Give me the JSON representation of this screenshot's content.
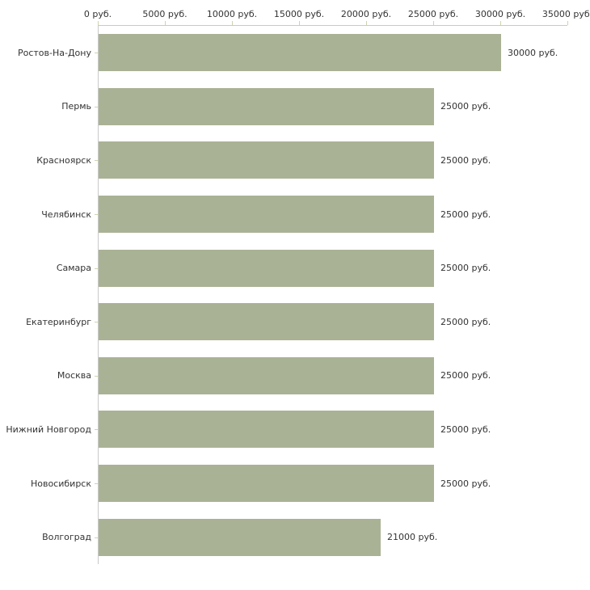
{
  "chart_data": {
    "type": "bar",
    "orientation": "horizontal",
    "title": "",
    "xlabel": "",
    "ylabel": "",
    "xlim": [
      0,
      35000
    ],
    "grid": false,
    "value_suffix": " руб.",
    "categories": [
      "Ростов-На-Дону",
      "Пермь",
      "Красноярск",
      "Челябинск",
      "Самара",
      "Екатеринбург",
      "Москва",
      "Нижний Новгород",
      "Новосибирск",
      "Волгоград"
    ],
    "values": [
      30000,
      25000,
      25000,
      25000,
      25000,
      25000,
      25000,
      25000,
      25000,
      21000
    ],
    "value_labels": [
      "30000 руб.",
      "25000 руб.",
      "25000 руб.",
      "25000 руб.",
      "25000 руб.",
      "25000 руб.",
      "25000 руб.",
      "25000 руб.",
      "25000 руб.",
      "21000 руб."
    ],
    "x_ticks": [
      {
        "value": 0,
        "label": "0 руб."
      },
      {
        "value": 5000,
        "label": "5000 руб."
      },
      {
        "value": 10000,
        "label": "10000 руб."
      },
      {
        "value": 15000,
        "label": "15000 руб."
      },
      {
        "value": 20000,
        "label": "20000 руб."
      },
      {
        "value": 25000,
        "label": "25000 руб."
      },
      {
        "value": 30000,
        "label": "30000 руб."
      },
      {
        "value": 35000,
        "label": "35000 руб."
      }
    ],
    "colors": {
      "bar": "#aab295",
      "axis": "#c9c9c9",
      "tick": "#ccd5ad",
      "text": "#333333",
      "background": "#ffffff"
    }
  }
}
